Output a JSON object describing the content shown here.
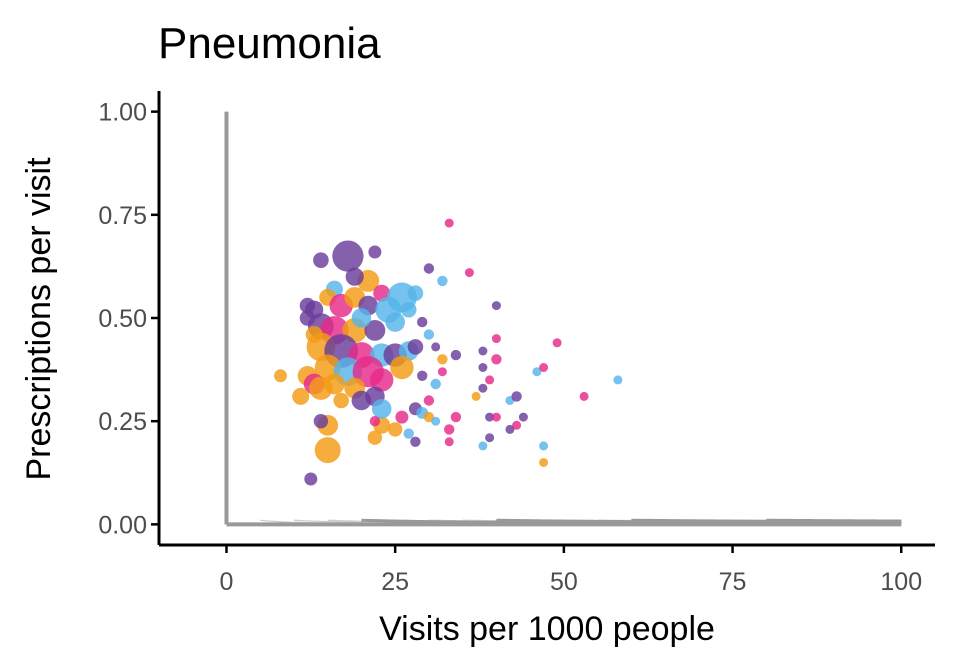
{
  "chart_data": {
    "type": "scatter",
    "title": "Pneumonia",
    "xlabel": "Visits per 1000 people",
    "ylabel": "Prescriptions per visit",
    "xlim": [
      -10,
      105
    ],
    "ylim": [
      -0.05,
      1.05
    ],
    "xticks": [
      0,
      25,
      50,
      75,
      100
    ],
    "xtick_labels": [
      "0",
      "25",
      "50",
      "75",
      "100"
    ],
    "yticks": [
      0,
      0.25,
      0.5,
      0.75,
      1.0
    ],
    "ytick_labels": [
      "0.00",
      "0.25",
      "0.50",
      "0.75",
      "1.00"
    ],
    "grid": false,
    "legend": "none",
    "reference_curves": {
      "formula": "x * y = k",
      "light_k": [
        5,
        10,
        15,
        25,
        30,
        35,
        45,
        50,
        55,
        65,
        70,
        75,
        85,
        90,
        95
      ],
      "dark_k": [
        20,
        40,
        60,
        80,
        100
      ],
      "light_color": "#cccccc",
      "dark_color": "#999999"
    },
    "reference_lines": {
      "x": 0,
      "y": 0,
      "color": "#999999"
    },
    "colors": {
      "purple": "#6a3d9a",
      "pink": "#e7298a",
      "blue": "#56b4e9",
      "orange": "#f39c12"
    },
    "points": [
      {
        "x": 18,
        "y": 0.65,
        "s": 2.4,
        "c": "purple"
      },
      {
        "x": 21,
        "y": 0.59,
        "s": 1.7,
        "c": "orange"
      },
      {
        "x": 14,
        "y": 0.64,
        "s": 1.2,
        "c": "purple"
      },
      {
        "x": 22,
        "y": 0.66,
        "s": 1.0,
        "c": "purple"
      },
      {
        "x": 19,
        "y": 0.6,
        "s": 1.4,
        "c": "purple"
      },
      {
        "x": 16,
        "y": 0.57,
        "s": 1.3,
        "c": "blue"
      },
      {
        "x": 13,
        "y": 0.52,
        "s": 1.4,
        "c": "purple"
      },
      {
        "x": 15,
        "y": 0.55,
        "s": 1.3,
        "c": "orange"
      },
      {
        "x": 12,
        "y": 0.53,
        "s": 1.2,
        "c": "purple"
      },
      {
        "x": 17,
        "y": 0.53,
        "s": 1.8,
        "c": "pink"
      },
      {
        "x": 19,
        "y": 0.55,
        "s": 1.6,
        "c": "orange"
      },
      {
        "x": 21,
        "y": 0.53,
        "s": 1.5,
        "c": "purple"
      },
      {
        "x": 23,
        "y": 0.56,
        "s": 1.3,
        "c": "pink"
      },
      {
        "x": 24,
        "y": 0.52,
        "s": 2.0,
        "c": "blue"
      },
      {
        "x": 26,
        "y": 0.55,
        "s": 2.3,
        "c": "blue"
      },
      {
        "x": 28,
        "y": 0.56,
        "s": 1.2,
        "c": "blue"
      },
      {
        "x": 25,
        "y": 0.49,
        "s": 1.5,
        "c": "blue"
      },
      {
        "x": 27,
        "y": 0.52,
        "s": 1.2,
        "c": "blue"
      },
      {
        "x": 14,
        "y": 0.48,
        "s": 2.0,
        "c": "purple"
      },
      {
        "x": 16,
        "y": 0.47,
        "s": 2.2,
        "c": "pink"
      },
      {
        "x": 19,
        "y": 0.47,
        "s": 1.9,
        "c": "orange"
      },
      {
        "x": 22,
        "y": 0.47,
        "s": 1.6,
        "c": "purple"
      },
      {
        "x": 20,
        "y": 0.5,
        "s": 1.5,
        "c": "blue"
      },
      {
        "x": 13,
        "y": 0.46,
        "s": 1.3,
        "c": "orange"
      },
      {
        "x": 12,
        "y": 0.5,
        "s": 1.2,
        "c": "purple"
      },
      {
        "x": 14,
        "y": 0.43,
        "s": 2.2,
        "c": "orange"
      },
      {
        "x": 17,
        "y": 0.42,
        "s": 2.6,
        "c": "purple"
      },
      {
        "x": 20,
        "y": 0.41,
        "s": 2.0,
        "c": "pink"
      },
      {
        "x": 23,
        "y": 0.41,
        "s": 1.8,
        "c": "blue"
      },
      {
        "x": 25,
        "y": 0.41,
        "s": 1.8,
        "c": "purple"
      },
      {
        "x": 27,
        "y": 0.42,
        "s": 1.5,
        "c": "blue"
      },
      {
        "x": 26,
        "y": 0.38,
        "s": 1.8,
        "c": "orange"
      },
      {
        "x": 28,
        "y": 0.43,
        "s": 1.2,
        "c": "purple"
      },
      {
        "x": 15,
        "y": 0.38,
        "s": 2.0,
        "c": "orange"
      },
      {
        "x": 18,
        "y": 0.37,
        "s": 2.2,
        "c": "blue"
      },
      {
        "x": 21,
        "y": 0.37,
        "s": 2.4,
        "c": "pink"
      },
      {
        "x": 23,
        "y": 0.35,
        "s": 1.8,
        "c": "pink"
      },
      {
        "x": 12,
        "y": 0.36,
        "s": 1.5,
        "c": "orange"
      },
      {
        "x": 13,
        "y": 0.34,
        "s": 1.6,
        "c": "pink"
      },
      {
        "x": 14,
        "y": 0.33,
        "s": 1.8,
        "c": "orange"
      },
      {
        "x": 16,
        "y": 0.34,
        "s": 1.6,
        "c": "orange"
      },
      {
        "x": 19,
        "y": 0.33,
        "s": 1.6,
        "c": "orange"
      },
      {
        "x": 22,
        "y": 0.31,
        "s": 1.5,
        "c": "purple"
      },
      {
        "x": 20,
        "y": 0.3,
        "s": 1.5,
        "c": "purple"
      },
      {
        "x": 11,
        "y": 0.31,
        "s": 1.3,
        "c": "orange"
      },
      {
        "x": 17,
        "y": 0.3,
        "s": 1.2,
        "c": "orange"
      },
      {
        "x": 8,
        "y": 0.36,
        "s": 1.0,
        "c": "orange"
      },
      {
        "x": 15,
        "y": 0.24,
        "s": 1.6,
        "c": "orange"
      },
      {
        "x": 15,
        "y": 0.18,
        "s": 2.0,
        "c": "orange"
      },
      {
        "x": 14,
        "y": 0.25,
        "s": 1.1,
        "c": "purple"
      },
      {
        "x": 12.5,
        "y": 0.11,
        "s": 1.0,
        "c": "purple"
      },
      {
        "x": 23,
        "y": 0.24,
        "s": 1.3,
        "c": "orange"
      },
      {
        "x": 22,
        "y": 0.21,
        "s": 1.1,
        "c": "orange"
      },
      {
        "x": 23,
        "y": 0.28,
        "s": 1.5,
        "c": "blue"
      },
      {
        "x": 25,
        "y": 0.23,
        "s": 1.1,
        "c": "orange"
      },
      {
        "x": 26,
        "y": 0.26,
        "s": 1.0,
        "c": "pink"
      },
      {
        "x": 22,
        "y": 0.25,
        "s": 0.8,
        "c": "pink"
      },
      {
        "x": 27,
        "y": 0.22,
        "s": 0.8,
        "c": "blue"
      },
      {
        "x": 28,
        "y": 0.2,
        "s": 0.8,
        "c": "purple"
      },
      {
        "x": 28,
        "y": 0.28,
        "s": 1.0,
        "c": "purple"
      },
      {
        "x": 29,
        "y": 0.27,
        "s": 0.9,
        "c": "blue"
      },
      {
        "x": 30,
        "y": 0.26,
        "s": 0.8,
        "c": "orange"
      },
      {
        "x": 29,
        "y": 0.36,
        "s": 0.8,
        "c": "purple"
      },
      {
        "x": 30,
        "y": 0.3,
        "s": 0.8,
        "c": "pink"
      },
      {
        "x": 31,
        "y": 0.34,
        "s": 0.8,
        "c": "blue"
      },
      {
        "x": 32,
        "y": 0.4,
        "s": 0.8,
        "c": "orange"
      },
      {
        "x": 32,
        "y": 0.37,
        "s": 0.7,
        "c": "pink"
      },
      {
        "x": 30,
        "y": 0.46,
        "s": 0.8,
        "c": "blue"
      },
      {
        "x": 31,
        "y": 0.43,
        "s": 0.7,
        "c": "purple"
      },
      {
        "x": 31,
        "y": 0.25,
        "s": 0.7,
        "c": "blue"
      },
      {
        "x": 29,
        "y": 0.49,
        "s": 0.8,
        "c": "purple"
      },
      {
        "x": 30,
        "y": 0.62,
        "s": 0.8,
        "c": "purple"
      },
      {
        "x": 32,
        "y": 0.59,
        "s": 0.8,
        "c": "blue"
      },
      {
        "x": 33,
        "y": 0.73,
        "s": 0.7,
        "c": "pink"
      },
      {
        "x": 36,
        "y": 0.61,
        "s": 0.7,
        "c": "pink"
      },
      {
        "x": 34,
        "y": 0.41,
        "s": 0.8,
        "c": "purple"
      },
      {
        "x": 34,
        "y": 0.26,
        "s": 0.8,
        "c": "pink"
      },
      {
        "x": 33,
        "y": 0.23,
        "s": 0.8,
        "c": "pink"
      },
      {
        "x": 33,
        "y": 0.2,
        "s": 0.7,
        "c": "pink"
      },
      {
        "x": 38,
        "y": 0.42,
        "s": 0.7,
        "c": "purple"
      },
      {
        "x": 38,
        "y": 0.38,
        "s": 0.7,
        "c": "purple"
      },
      {
        "x": 39,
        "y": 0.35,
        "s": 0.7,
        "c": "pink"
      },
      {
        "x": 38,
        "y": 0.33,
        "s": 0.7,
        "c": "purple"
      },
      {
        "x": 37,
        "y": 0.31,
        "s": 0.7,
        "c": "orange"
      },
      {
        "x": 40,
        "y": 0.45,
        "s": 0.7,
        "c": "pink"
      },
      {
        "x": 40,
        "y": 0.4,
        "s": 0.8,
        "c": "pink"
      },
      {
        "x": 40,
        "y": 0.53,
        "s": 0.7,
        "c": "purple"
      },
      {
        "x": 39,
        "y": 0.26,
        "s": 0.7,
        "c": "purple"
      },
      {
        "x": 40,
        "y": 0.26,
        "s": 0.7,
        "c": "pink"
      },
      {
        "x": 39,
        "y": 0.21,
        "s": 0.7,
        "c": "purple"
      },
      {
        "x": 38,
        "y": 0.19,
        "s": 0.7,
        "c": "blue"
      },
      {
        "x": 42,
        "y": 0.3,
        "s": 0.7,
        "c": "blue"
      },
      {
        "x": 43,
        "y": 0.31,
        "s": 0.8,
        "c": "purple"
      },
      {
        "x": 44,
        "y": 0.26,
        "s": 0.7,
        "c": "purple"
      },
      {
        "x": 43,
        "y": 0.24,
        "s": 0.7,
        "c": "pink"
      },
      {
        "x": 42,
        "y": 0.23,
        "s": 0.7,
        "c": "purple"
      },
      {
        "x": 46,
        "y": 0.37,
        "s": 0.7,
        "c": "blue"
      },
      {
        "x": 47,
        "y": 0.38,
        "s": 0.7,
        "c": "pink"
      },
      {
        "x": 47,
        "y": 0.19,
        "s": 0.7,
        "c": "blue"
      },
      {
        "x": 47,
        "y": 0.15,
        "s": 0.7,
        "c": "orange"
      },
      {
        "x": 49,
        "y": 0.44,
        "s": 0.7,
        "c": "pink"
      },
      {
        "x": 53,
        "y": 0.31,
        "s": 0.7,
        "c": "pink"
      },
      {
        "x": 58,
        "y": 0.35,
        "s": 0.7,
        "c": "blue"
      }
    ]
  }
}
